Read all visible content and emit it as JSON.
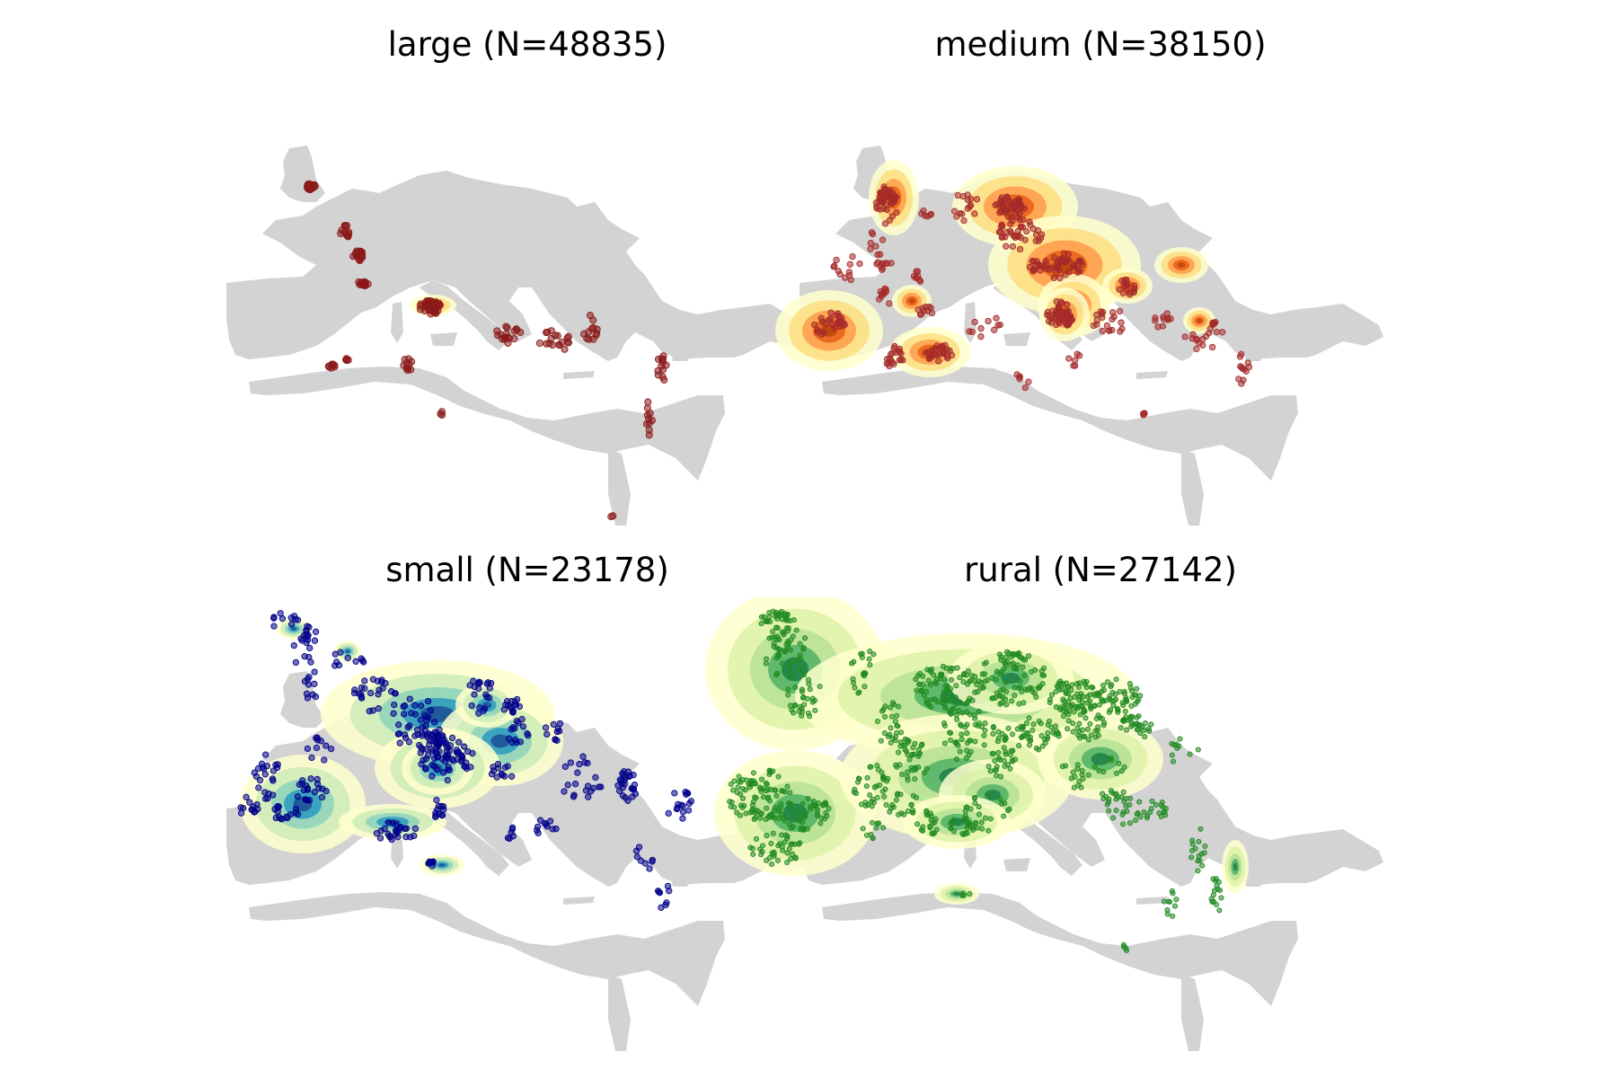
{
  "panels": [
    {
      "title": "large (N=48835)",
      "category": "large",
      "count": 48835,
      "point_color": "#8b1a1a",
      "density_palette": [
        "#ffffcc",
        "#fed976",
        "#fd8d3c",
        "#e31a1c",
        "#800026"
      ]
    },
    {
      "title": "medium (N=38150)",
      "category": "medium",
      "count": 38150,
      "point_color": "#a52a2a",
      "density_palette": [
        "#ffffcc",
        "#fed976",
        "#fd8d3c",
        "#e6550d",
        "#a63603"
      ]
    },
    {
      "title": "small (N=23178)",
      "category": "small",
      "count": 23178,
      "point_color": "#00008b",
      "density_palette": [
        "#ffffcc",
        "#c7e9b4",
        "#7fcdbb",
        "#1d91c0",
        "#0c2c84"
      ]
    },
    {
      "title": "rural (N=27142)",
      "category": "rural",
      "count": 27142,
      "point_color": "#228b22",
      "density_palette": [
        "#ffffcc",
        "#d9f0a3",
        "#addd8e",
        "#41ab5d",
        "#006837"
      ]
    }
  ],
  "colors": {
    "land": "#d3d3d3",
    "background": "#ffffff"
  }
}
